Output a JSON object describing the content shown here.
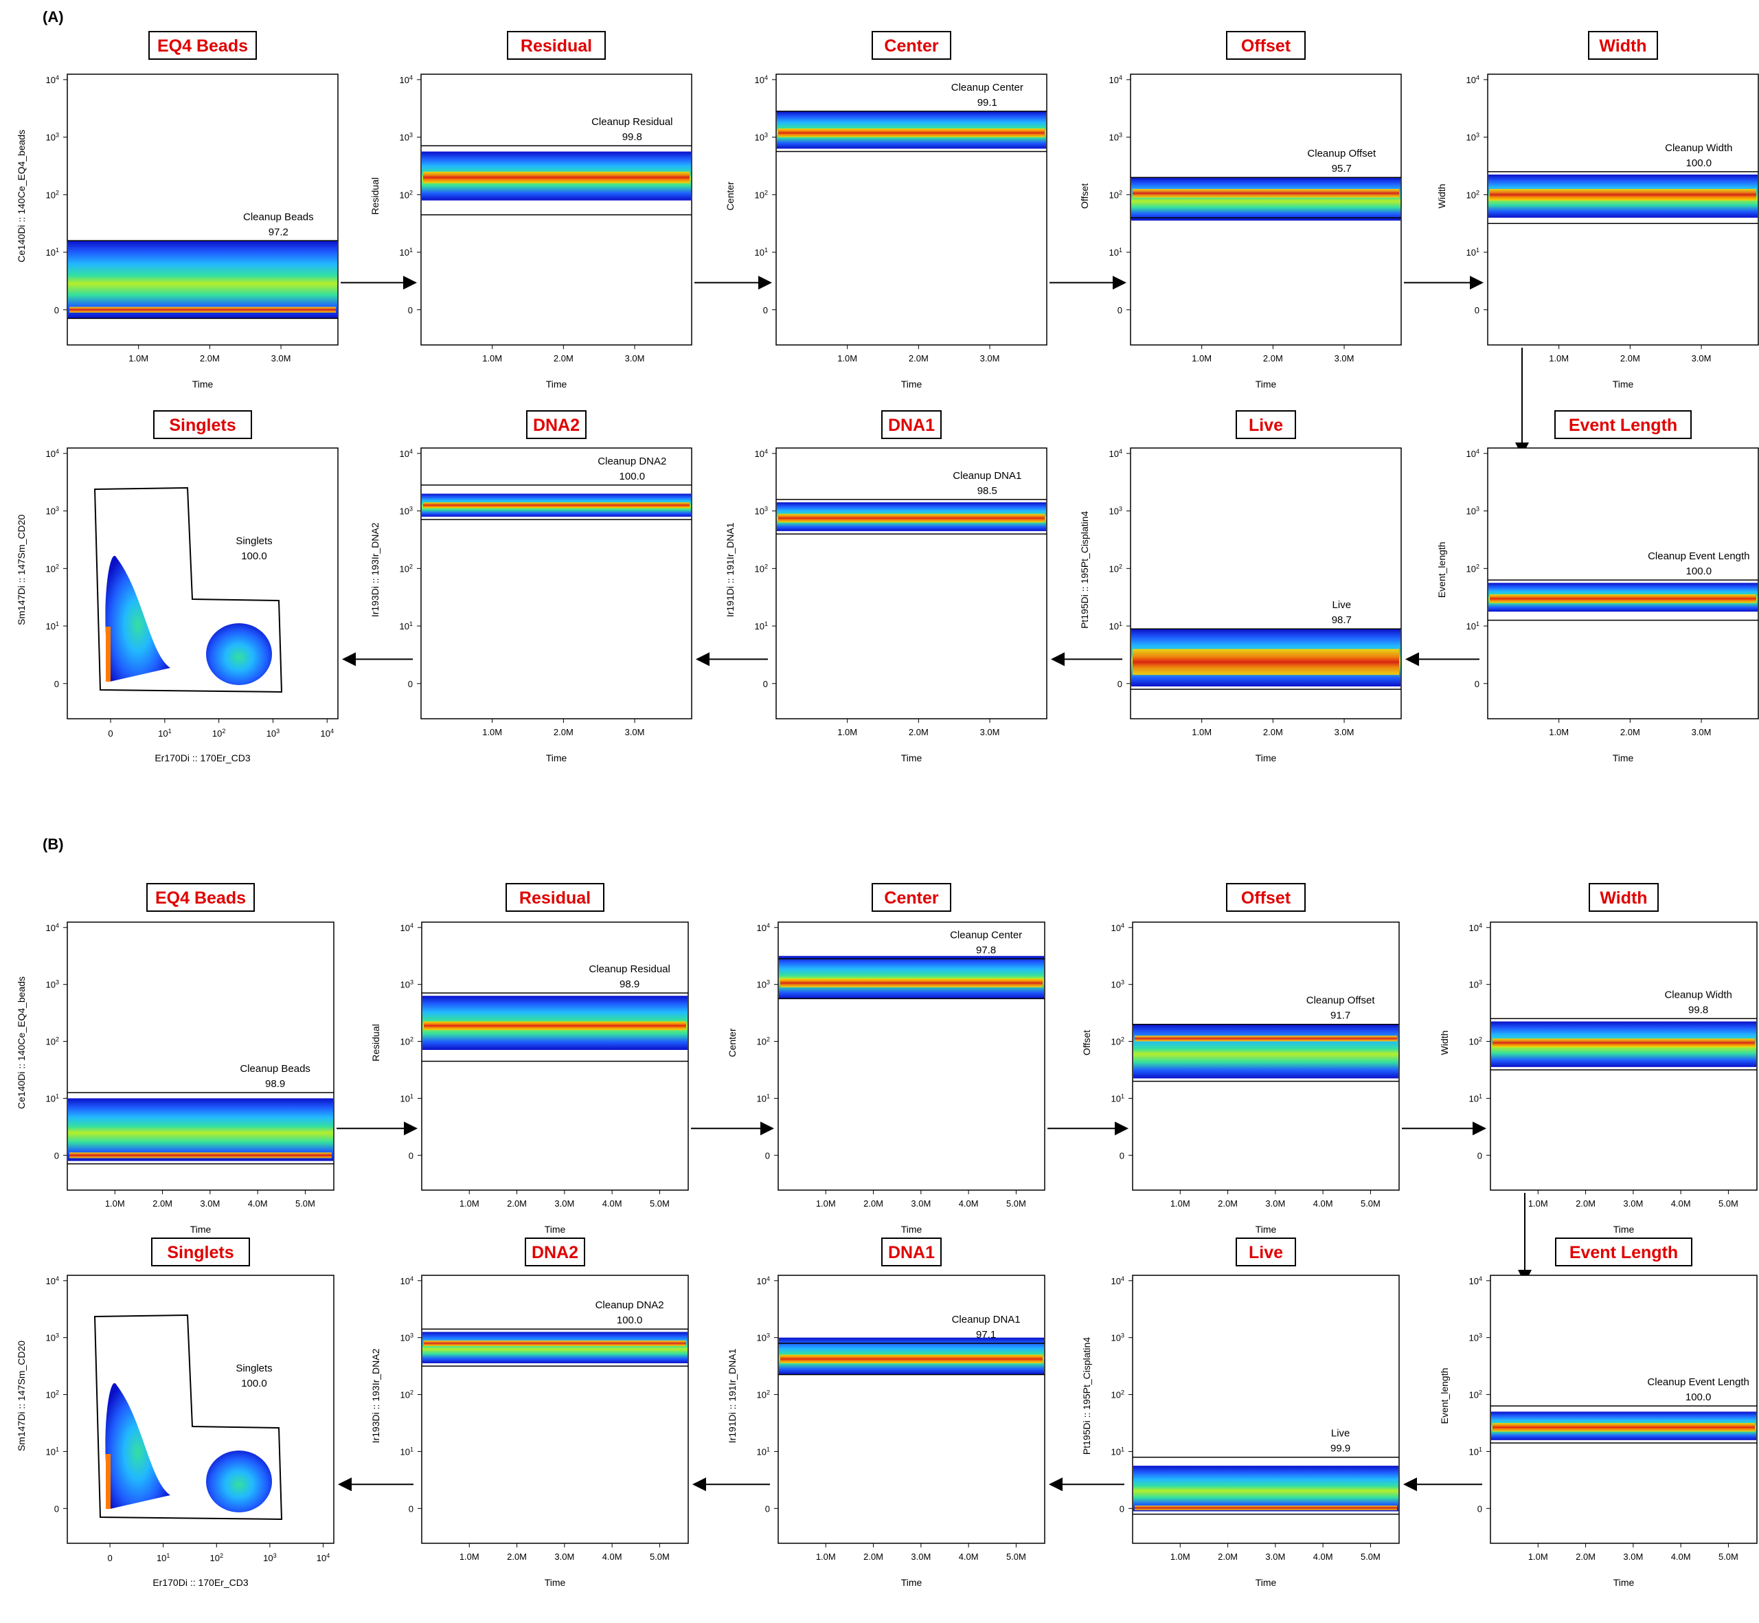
{
  "colors": {
    "title_text": "#e00000",
    "density_scale": [
      "#0a10c8",
      "#1f5fff",
      "#22b8ff",
      "#34e0a0",
      "#b6ee2a",
      "#ffd700",
      "#ff7a00",
      "#e01010"
    ]
  },
  "chart_data": [
    {
      "panel_label": "(A)",
      "plots": [
        {
          "title": "EQ4 Beads",
          "type": "density",
          "xlabel": "Time",
          "ylabel": "Ce140Di :: 140Ce_EQ4_beads",
          "xticks": [
            "1.0M",
            "2.0M",
            "3.0M"
          ],
          "yticks": [
            "0",
            "10^1",
            "10^2",
            "10^3",
            "10^4"
          ],
          "xlim": [
            0,
            3.8
          ],
          "gate_name": "Cleanup Beads",
          "gate_value": "97.2",
          "gate_range": [
            -0.15,
            1.2
          ],
          "bands": [
            [
              -0.15,
              1.2
            ],
            [
              -0.05,
              0.05
            ]
          ]
        },
        {
          "title": "Residual",
          "type": "density",
          "xlabel": "Time",
          "ylabel": "Residual",
          "xticks": [
            "1.0M",
            "2.0M",
            "3.0M"
          ],
          "yticks": [
            "0",
            "10^1",
            "10^2",
            "10^3",
            "10^4"
          ],
          "xlim": [
            0,
            3.8
          ],
          "gate_name": "Cleanup Residual",
          "gate_value": "99.8",
          "gate_range": [
            1.65,
            2.85
          ],
          "bands": [
            [
              1.9,
              2.75
            ],
            [
              2.2,
              2.4
            ]
          ]
        },
        {
          "title": "Center",
          "type": "density",
          "xlabel": "Time",
          "ylabel": "Center",
          "xticks": [
            "1.0M",
            "2.0M",
            "3.0M"
          ],
          "yticks": [
            "0",
            "10^1",
            "10^2",
            "10^3",
            "10^4"
          ],
          "xlim": [
            0,
            3.8
          ],
          "gate_name": "Cleanup Center",
          "gate_value": "99.1",
          "gate_range": [
            2.75,
            3.45
          ],
          "bands": [
            [
              2.8,
              3.45
            ],
            [
              3.0,
              3.15
            ]
          ]
        },
        {
          "title": "Offset",
          "type": "density",
          "xlabel": "Time",
          "ylabel": "Offset",
          "xticks": [
            "1.0M",
            "2.0M",
            "3.0M"
          ],
          "yticks": [
            "0",
            "10^1",
            "10^2",
            "10^3",
            "10^4"
          ],
          "xlim": [
            0,
            3.8
          ],
          "gate_name": "Cleanup Offset",
          "gate_value": "95.7",
          "gate_range": [
            1.6,
            2.3
          ],
          "bands": [
            [
              1.55,
              2.3
            ],
            [
              1.95,
              2.1
            ]
          ]
        },
        {
          "title": "Width",
          "type": "density",
          "xlabel": "Time",
          "ylabel": "Width",
          "xticks": [
            "1.0M",
            "2.0M",
            "3.0M"
          ],
          "yticks": [
            "0",
            "10^1",
            "10^2",
            "10^3",
            "10^4"
          ],
          "xlim": [
            0,
            3.8
          ],
          "gate_name": "Cleanup Width",
          "gate_value": "100.0",
          "gate_range": [
            1.5,
            2.4
          ],
          "bands": [
            [
              1.6,
              2.35
            ],
            [
              1.9,
              2.1
            ]
          ]
        },
        {
          "title": "Event Length",
          "type": "density",
          "xlabel": "Time",
          "ylabel": "Event_length",
          "xticks": [
            "1.0M",
            "2.0M",
            "3.0M"
          ],
          "yticks": [
            "0",
            "10^1",
            "10^2",
            "10^3",
            "10^4"
          ],
          "xlim": [
            0,
            3.8
          ],
          "gate_name": "Cleanup Event Length",
          "gate_value": "100.0",
          "gate_range": [
            1.1,
            1.8
          ],
          "bands": [
            [
              1.25,
              1.75
            ],
            [
              1.4,
              1.55
            ]
          ]
        },
        {
          "title": "Live",
          "type": "density",
          "xlabel": "Time",
          "ylabel": "Pt195Di :: 195Pt_Cisplatin4",
          "xticks": [
            "1.0M",
            "2.0M",
            "3.0M"
          ],
          "yticks": [
            "0",
            "10^1",
            "10^2",
            "10^3",
            "10^4"
          ],
          "xlim": [
            0,
            3.8
          ],
          "gate_name": "Live",
          "gate_value": "98.7",
          "gate_range": [
            -0.1,
            0.95
          ],
          "bands": [
            [
              -0.05,
              0.95
            ],
            [
              0.15,
              0.6
            ]
          ]
        },
        {
          "title": "DNA1",
          "type": "density",
          "xlabel": "Time",
          "ylabel": "Ir191Di :: 191Ir_DNA1",
          "xticks": [
            "1.0M",
            "2.0M",
            "3.0M"
          ],
          "yticks": [
            "0",
            "10^1",
            "10^2",
            "10^3",
            "10^4"
          ],
          "xlim": [
            0,
            3.8
          ],
          "gate_name": "Cleanup DNA1",
          "gate_value": "98.5",
          "gate_range": [
            2.6,
            3.2
          ],
          "bands": [
            [
              2.65,
              3.15
            ],
            [
              2.8,
              2.95
            ]
          ]
        },
        {
          "title": "DNA2",
          "type": "density",
          "xlabel": "Time",
          "ylabel": "Ir193Di :: 193Ir_DNA2",
          "xticks": [
            "1.0M",
            "2.0M",
            "3.0M"
          ],
          "yticks": [
            "0",
            "10^1",
            "10^2",
            "10^3",
            "10^4"
          ],
          "xlim": [
            0,
            3.8
          ],
          "gate_name": "Cleanup DNA2",
          "gate_value": "100.0",
          "gate_range": [
            2.85,
            3.45
          ],
          "bands": [
            [
              2.9,
              3.3
            ],
            [
              3.05,
              3.15
            ]
          ]
        },
        {
          "title": "Singlets",
          "type": "biaxial",
          "xlabel": "Er170Di :: 170Er_CD3",
          "ylabel": "Sm147Di :: 147Sm_CD20",
          "xticks": [
            "0",
            "10^1",
            "10^2",
            "10^3",
            "10^4"
          ],
          "yticks": [
            "0",
            "10^1",
            "10^2",
            "10^3",
            "10^4"
          ],
          "gate_name": "Singlets",
          "gate_value": "100.0"
        }
      ]
    },
    {
      "panel_label": "(B)",
      "plots": [
        {
          "title": "EQ4 Beads",
          "type": "density",
          "xlabel": "Time",
          "ylabel": "Ce140Di :: 140Ce_EQ4_beads",
          "xticks": [
            "1.0M",
            "2.0M",
            "3.0M",
            "4.0M",
            "5.0M"
          ],
          "yticks": [
            "0",
            "10^1",
            "10^2",
            "10^3",
            "10^4"
          ],
          "xlim": [
            0,
            5.6
          ],
          "gate_name": "Cleanup Beads",
          "gate_value": "98.9",
          "gate_range": [
            -0.15,
            1.1
          ],
          "bands": [
            [
              -0.1,
              1.0
            ],
            [
              -0.05,
              0.05
            ]
          ]
        },
        {
          "title": "Residual",
          "type": "density",
          "xlabel": "Time",
          "ylabel": "Residual",
          "xticks": [
            "1.0M",
            "2.0M",
            "3.0M",
            "4.0M",
            "5.0M"
          ],
          "yticks": [
            "0",
            "10^1",
            "10^2",
            "10^3",
            "10^4"
          ],
          "xlim": [
            0,
            5.6
          ],
          "gate_name": "Cleanup Residual",
          "gate_value": "98.9",
          "gate_range": [
            1.65,
            2.85
          ],
          "bands": [
            [
              1.85,
              2.8
            ],
            [
              2.2,
              2.35
            ]
          ]
        },
        {
          "title": "Center",
          "type": "density",
          "xlabel": "Time",
          "ylabel": "Center",
          "xticks": [
            "1.0M",
            "2.0M",
            "3.0M",
            "4.0M",
            "5.0M"
          ],
          "yticks": [
            "0",
            "10^1",
            "10^2",
            "10^3",
            "10^4"
          ],
          "xlim": [
            0,
            5.6
          ],
          "gate_name": "Cleanup Center",
          "gate_value": "97.8",
          "gate_range": [
            2.75,
            3.45
          ],
          "bands": [
            [
              2.75,
              3.5
            ],
            [
              2.95,
              3.1
            ]
          ]
        },
        {
          "title": "Offset",
          "type": "density",
          "xlabel": "Time",
          "ylabel": "Offset",
          "xticks": [
            "1.0M",
            "2.0M",
            "3.0M",
            "4.0M",
            "5.0M"
          ],
          "yticks": [
            "0",
            "10^1",
            "10^2",
            "10^3",
            "10^4"
          ],
          "xlim": [
            0,
            5.6
          ],
          "gate_name": "Cleanup Offset",
          "gate_value": "91.7",
          "gate_range": [
            1.3,
            2.3
          ],
          "bands": [
            [
              1.35,
              2.3
            ],
            [
              2.0,
              2.1
            ]
          ]
        },
        {
          "title": "Width",
          "type": "density",
          "xlabel": "Time",
          "ylabel": "Width",
          "xticks": [
            "1.0M",
            "2.0M",
            "3.0M",
            "4.0M",
            "5.0M"
          ],
          "yticks": [
            "0",
            "10^1",
            "10^2",
            "10^3",
            "10^4"
          ],
          "xlim": [
            0,
            5.6
          ],
          "gate_name": "Cleanup Width",
          "gate_value": "99.8",
          "gate_range": [
            1.5,
            2.4
          ],
          "bands": [
            [
              1.55,
              2.35
            ],
            [
              1.9,
              2.05
            ]
          ]
        },
        {
          "title": "Event Length",
          "type": "density",
          "xlabel": "Time",
          "ylabel": "Event_length",
          "xticks": [
            "1.0M",
            "2.0M",
            "3.0M",
            "4.0M",
            "5.0M"
          ],
          "yticks": [
            "0",
            "10^1",
            "10^2",
            "10^3",
            "10^4"
          ],
          "xlim": [
            0,
            5.6
          ],
          "gate_name": "Cleanup Event Length",
          "gate_value": "100.0",
          "gate_range": [
            1.15,
            1.8
          ],
          "bands": [
            [
              1.2,
              1.7
            ],
            [
              1.35,
              1.5
            ]
          ]
        },
        {
          "title": "Live",
          "type": "density",
          "xlabel": "Time",
          "ylabel": "Pt195Di :: 195Pt_Cisplatin4",
          "xticks": [
            "1.0M",
            "2.0M",
            "3.0M",
            "4.0M",
            "5.0M"
          ],
          "yticks": [
            "0",
            "10^1",
            "10^2",
            "10^3",
            "10^4"
          ],
          "xlim": [
            0,
            5.6
          ],
          "gate_name": "Live",
          "gate_value": "99.9",
          "gate_range": [
            -0.1,
            0.9
          ],
          "bands": [
            [
              -0.05,
              0.75
            ],
            [
              -0.03,
              0.05
            ]
          ]
        },
        {
          "title": "DNA1",
          "type": "density",
          "xlabel": "Time",
          "ylabel": "Ir191Di :: 191Ir_DNA1",
          "xticks": [
            "1.0M",
            "2.0M",
            "3.0M",
            "4.0M",
            "5.0M"
          ],
          "yticks": [
            "0",
            "10^1",
            "10^2",
            "10^3",
            "10^4"
          ],
          "xlim": [
            0,
            5.6
          ],
          "gate_name": "Cleanup DNA1",
          "gate_value": "97.1",
          "gate_range": [
            2.35,
            2.9
          ],
          "bands": [
            [
              2.35,
              3.0
            ],
            [
              2.55,
              2.7
            ]
          ]
        },
        {
          "title": "DNA2",
          "type": "density",
          "xlabel": "Time",
          "ylabel": "Ir193Di :: 193Ir_DNA2",
          "xticks": [
            "1.0M",
            "2.0M",
            "3.0M",
            "4.0M",
            "5.0M"
          ],
          "yticks": [
            "0",
            "10^1",
            "10^2",
            "10^3",
            "10^4"
          ],
          "xlim": [
            0,
            5.6
          ],
          "gate_name": "Cleanup DNA2",
          "gate_value": "100.0",
          "gate_range": [
            2.5,
            3.15
          ],
          "bands": [
            [
              2.55,
              3.1
            ],
            [
              2.85,
              2.95
            ]
          ]
        },
        {
          "title": "Singlets",
          "type": "biaxial",
          "xlabel": "Er170Di :: 170Er_CD3",
          "ylabel": "Sm147Di :: 147Sm_CD20",
          "xticks": [
            "0",
            "10^1",
            "10^2",
            "10^3",
            "10^4"
          ],
          "yticks": [
            "0",
            "10^1",
            "10^2",
            "10^3",
            "10^4"
          ],
          "gate_name": "Singlets",
          "gate_value": "100.0"
        }
      ]
    }
  ]
}
